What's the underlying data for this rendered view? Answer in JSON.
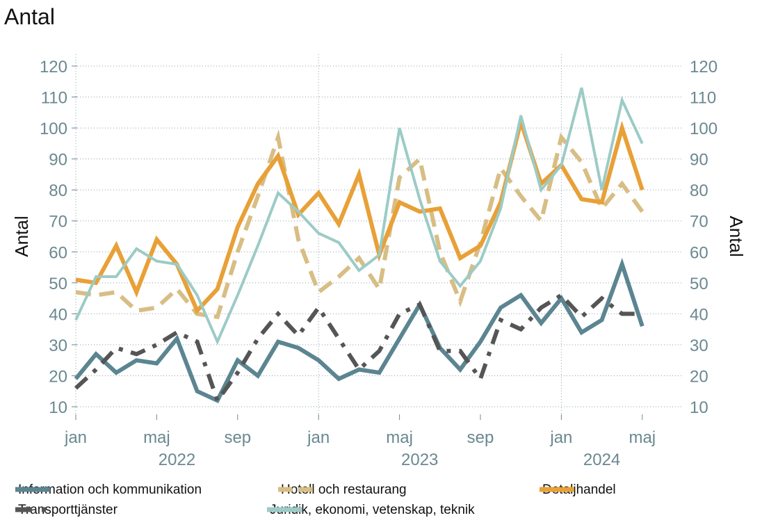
{
  "page_title": "Antal",
  "chart_data": {
    "type": "line",
    "title": "Antal",
    "ylabel_left": "Antal",
    "ylabel_right": "Antal",
    "ylim": [
      6,
      123
    ],
    "yticks": [
      10,
      20,
      30,
      40,
      50,
      60,
      70,
      80,
      90,
      100,
      110,
      120
    ],
    "x": [
      "2022-01",
      "2022-02",
      "2022-03",
      "2022-04",
      "2022-05",
      "2022-06",
      "2022-07",
      "2022-08",
      "2022-09",
      "2022-10",
      "2022-11",
      "2022-12",
      "2023-01",
      "2023-02",
      "2023-03",
      "2023-04",
      "2023-05",
      "2023-06",
      "2023-07",
      "2023-08",
      "2023-09",
      "2023-10",
      "2023-11",
      "2023-12",
      "2024-01",
      "2024-02",
      "2024-03",
      "2024-04",
      "2024-05"
    ],
    "month_ticks": [
      {
        "x": "2022-01",
        "label": "jan"
      },
      {
        "x": "2022-05",
        "label": "maj"
      },
      {
        "x": "2022-09",
        "label": "sep"
      },
      {
        "x": "2023-01",
        "label": "jan"
      },
      {
        "x": "2023-05",
        "label": "maj"
      },
      {
        "x": "2023-09",
        "label": "sep"
      },
      {
        "x": "2024-01",
        "label": "jan"
      },
      {
        "x": "2024-05",
        "label": "maj"
      }
    ],
    "year_labels": [
      {
        "x": "2022-06",
        "label": "2022"
      },
      {
        "x": "2023-06",
        "label": "2023"
      },
      {
        "x": "2024-03",
        "label": "2024"
      }
    ],
    "vgrid": [
      "2022-01",
      "2023-01",
      "2024-01"
    ],
    "grid": true,
    "series": [
      {
        "name": "Information och kommunikation",
        "color": "#5b8591",
        "style": "solid",
        "width": 6,
        "values": [
          19,
          27,
          21,
          25,
          24,
          32,
          15,
          12,
          25,
          20,
          31,
          29,
          25,
          19,
          22,
          21,
          32,
          43,
          29,
          22,
          31,
          42,
          46,
          37,
          45,
          34,
          38,
          56,
          36
        ]
      },
      {
        "name": "Hotell och restaurang",
        "color": "#d8bd84",
        "style": "dashed",
        "width": 6,
        "values": [
          47,
          46,
          47,
          41,
          42,
          48,
          40,
          39,
          60,
          78,
          97,
          64,
          47,
          52,
          58,
          48,
          84,
          90,
          60,
          44,
          63,
          87,
          78,
          70,
          97,
          89,
          74,
          82,
          73
        ]
      },
      {
        "name": "Detaljhandel",
        "color": "#e8a037",
        "style": "solid",
        "width": 6,
        "values": [
          51,
          50,
          62,
          47,
          64,
          56,
          41,
          48,
          68,
          82,
          91,
          72,
          79,
          69,
          85,
          59,
          76,
          73,
          74,
          58,
          62,
          76,
          102,
          82,
          88,
          77,
          76,
          100,
          80
        ]
      },
      {
        "name": "Transporttjänster",
        "color": "#555555",
        "style": "dashdot",
        "width": 6,
        "values": [
          16,
          22,
          29,
          27,
          30,
          34,
          31,
          12,
          21,
          32,
          40,
          33,
          42,
          32,
          22,
          28,
          40,
          43,
          28,
          28,
          19,
          38,
          35,
          42,
          46,
          39,
          45,
          40,
          40
        ]
      },
      {
        "name": "Juridik, ekonomi, vetenskap, teknik",
        "color": "#9ccbc6",
        "style": "solid",
        "width": 4,
        "values": [
          38,
          52,
          52,
          61,
          57,
          56,
          46,
          31,
          46,
          62,
          79,
          73,
          66,
          63,
          54,
          59,
          100,
          77,
          57,
          49,
          57,
          74,
          104,
          80,
          88,
          113,
          80,
          109,
          95
        ]
      }
    ],
    "legend_position": "bottom"
  }
}
